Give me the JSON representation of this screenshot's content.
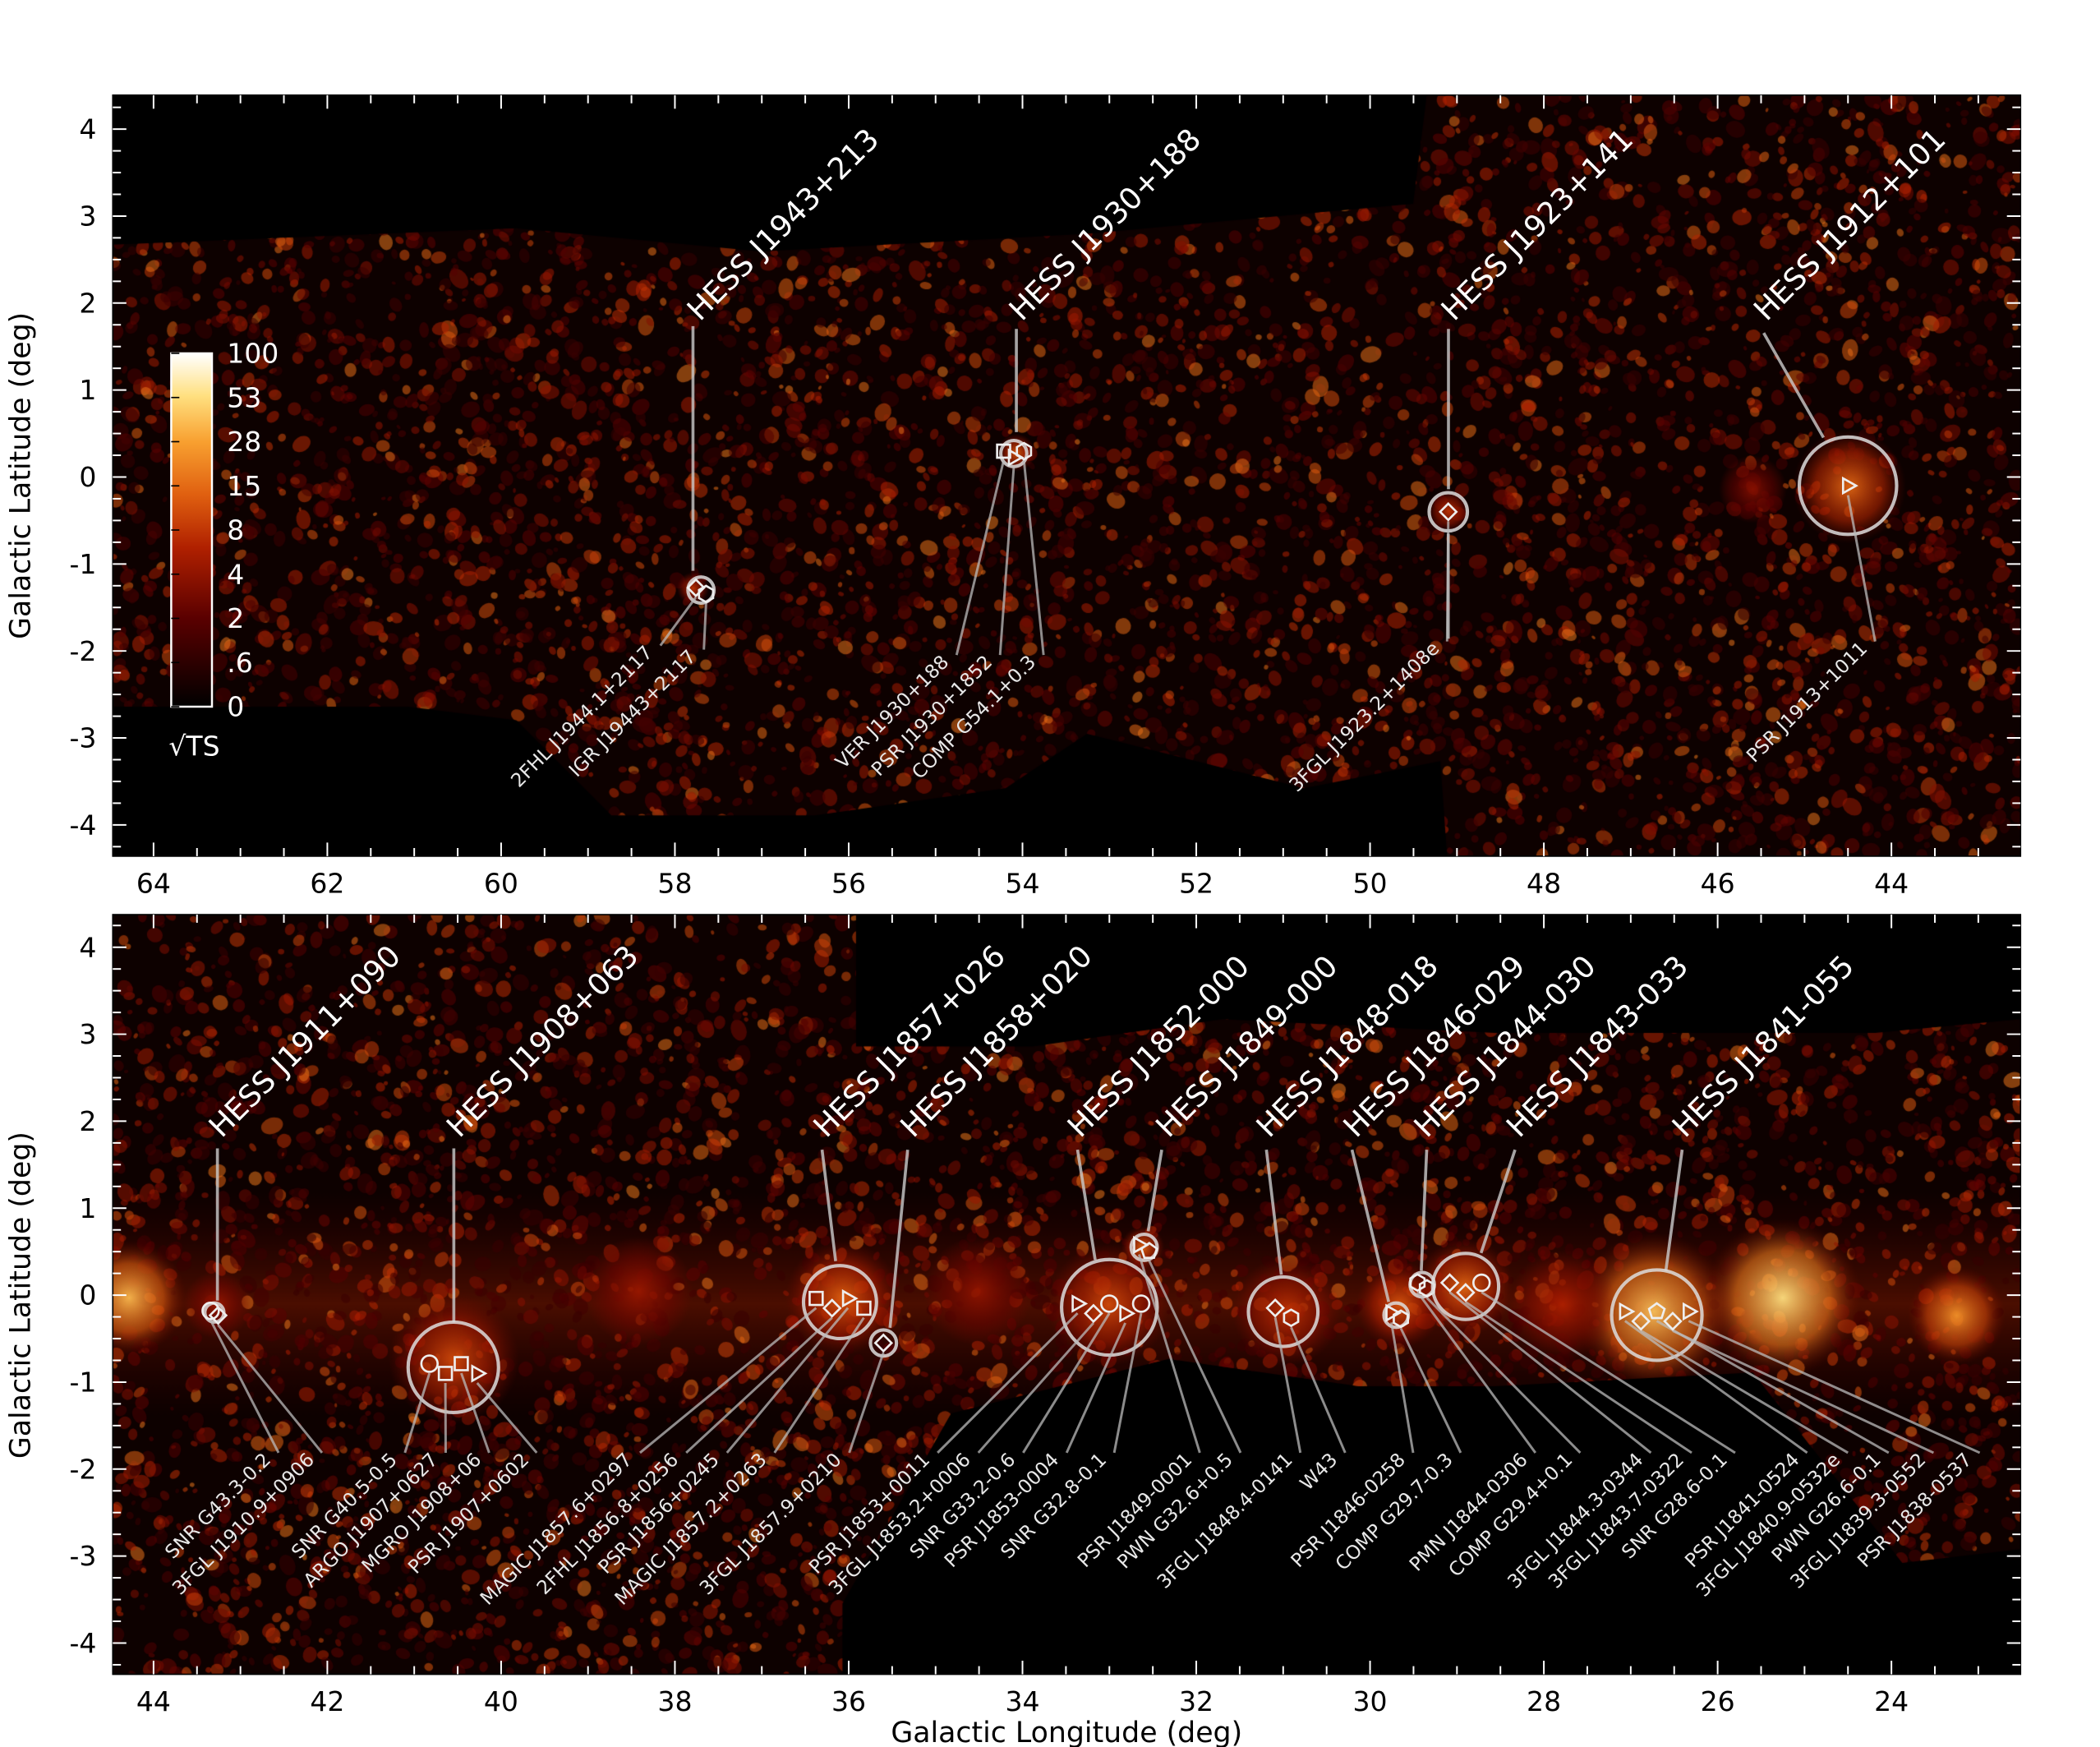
{
  "chart_data": {
    "type": "heatmap",
    "x_label": "Galactic Longitude (deg)",
    "y_label": "Galactic Latitude (deg)",
    "colorbar": {
      "label": "√TS",
      "ticks": [
        "100",
        "53",
        "28",
        "15",
        "8",
        "4",
        "2",
        ".6",
        "0"
      ],
      "colors": [
        "#000000",
        "#5a0000",
        "#b02000",
        "#e06010",
        "#f8a030",
        "#ffe080",
        "#ffffff"
      ]
    },
    "panels": [
      {
        "name": "top",
        "xlim": [
          64.5,
          42.6
        ],
        "ylim": [
          -4.4,
          4.4
        ],
        "x_ticks": [
          "64",
          "62",
          "60",
          "58",
          "56",
          "54",
          "52",
          "50",
          "48",
          "46",
          "44"
        ],
        "y_ticks": [
          "4",
          "3",
          "2",
          "1",
          "0",
          "-1",
          "-2",
          "-3",
          "-4"
        ],
        "sources": [
          {
            "name": "HESS J1943+213",
            "l": 57.7,
            "b": -1.3,
            "radius_deg": 0.15,
            "counterparts": [
              "2FHL J1944.1+2117",
              "IGR J19443+2117"
            ]
          },
          {
            "name": "HESS J1930+188",
            "l": 54.1,
            "b": 0.27,
            "radius_deg": 0.15,
            "counterparts": [
              "VER J1930+188",
              "PSR J1930+1852",
              "COMP G54.1+0.3"
            ]
          },
          {
            "name": "HESS J1923+141",
            "l": 49.1,
            "b": -0.4,
            "radius_deg": 0.22,
            "counterparts": [
              "3FGL J1923.2+1408e"
            ]
          },
          {
            "name": "HESS J1912+101",
            "l": 44.5,
            "b": -0.1,
            "radius_deg": 0.56,
            "counterparts": [
              "PSR J1913+1011"
            ]
          }
        ]
      },
      {
        "name": "bottom",
        "xlim": [
          44.5,
          22.6
        ],
        "ylim": [
          -4.4,
          4.4
        ],
        "x_ticks": [
          "44",
          "42",
          "40",
          "38",
          "36",
          "34",
          "32",
          "30",
          "28",
          "26",
          "24"
        ],
        "y_ticks": [
          "4",
          "3",
          "2",
          "1",
          "0",
          "-1",
          "-2",
          "-3",
          "-4"
        ],
        "sources": [
          {
            "name": "HESS J1911+090",
            "l": 43.3,
            "b": -0.2,
            "radius_deg": 0.1,
            "counterparts": [
              "SNR G43.3-0.2",
              "3FGL J1910.9+0906"
            ]
          },
          {
            "name": "HESS J1908+063",
            "l": 40.55,
            "b": -0.83,
            "radius_deg": 0.52,
            "counterparts": [
              "SNR G40.5-0.5",
              "ARGO J1907+0627",
              "MGRO J1908+06",
              "PSR J1907+0602"
            ]
          },
          {
            "name": "HESS J1857+026",
            "l": 36.1,
            "b": -0.08,
            "radius_deg": 0.42,
            "counterparts": [
              "MAGIC J1857.6+0297",
              "2FHL J1856.8+0256",
              "PSR J1856+0245",
              "MAGIC J1857.2+0263"
            ]
          },
          {
            "name": "HESS J1858+020",
            "l": 35.6,
            "b": -0.55,
            "radius_deg": 0.15,
            "counterparts": [
              "3FGL J1857.9+0210"
            ]
          },
          {
            "name": "HESS J1852-000",
            "l": 33.0,
            "b": -0.14,
            "radius_deg": 0.55,
            "counterparts": [
              "PSR J1853+0011",
              "3FGL J1853.2+0006",
              "SNR G33.2-0.6",
              "PSR J1853-0004",
              "SNR G32.8-0.1"
            ]
          },
          {
            "name": "HESS J1849-000",
            "l": 32.6,
            "b": 0.55,
            "radius_deg": 0.15,
            "counterparts": [
              "PSR J1849-0001",
              "PWN G32.6+0.5"
            ]
          },
          {
            "name": "HESS J1848-018",
            "l": 31.0,
            "b": -0.19,
            "radius_deg": 0.4,
            "counterparts": [
              "3FGL J1848.4-0141",
              "W43"
            ]
          },
          {
            "name": "HESS J1846-029",
            "l": 29.7,
            "b": -0.23,
            "radius_deg": 0.14,
            "counterparts": [
              "PSR J1846-0258",
              "COMP G29.7-0.3"
            ]
          },
          {
            "name": "HESS J1844-030",
            "l": 29.4,
            "b": 0.12,
            "radius_deg": 0.14,
            "counterparts": [
              "PMN J1844-0306",
              "COMP G29.4+0.1"
            ]
          },
          {
            "name": "HESS J1843-033",
            "l": 28.9,
            "b": 0.1,
            "radius_deg": 0.38,
            "counterparts": [
              "3FGL J1844.3-0344",
              "3FGL J1843.7-0322",
              "SNR G28.6-0.1"
            ]
          },
          {
            "name": "HESS J1841-055",
            "l": 26.7,
            "b": -0.23,
            "radius_deg": 0.52,
            "counterparts": [
              "PSR J1841-0524",
              "3FGL J1840.9-0532e",
              "PWN G26.6-0.1",
              "3FGL J1839.3-0552",
              "PSR J1838-0537"
            ]
          }
        ]
      }
    ]
  }
}
